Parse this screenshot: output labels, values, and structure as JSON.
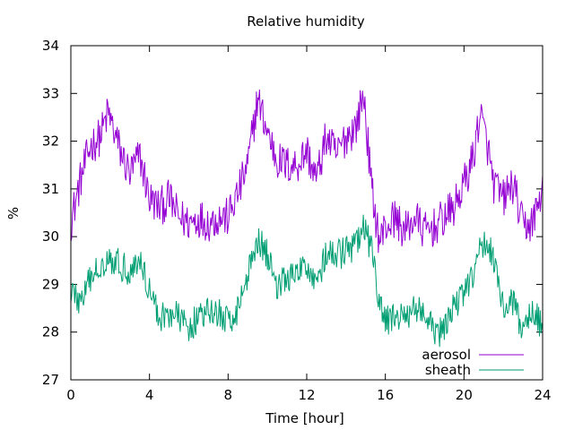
{
  "chart_data": {
    "type": "line",
    "title": "Relative humidity",
    "xlabel": "Time [hour]",
    "ylabel": "%",
    "xlim": [
      0,
      24
    ],
    "ylim": [
      27,
      34
    ],
    "x_ticks": [
      "0",
      "4",
      "8",
      "12",
      "16",
      "20",
      "24"
    ],
    "y_ticks": [
      "27",
      "28",
      "29",
      "30",
      "31",
      "32",
      "33",
      "34"
    ],
    "grid": false,
    "legend_position": "bottom-right",
    "series": [
      {
        "name": "aerosol",
        "color": "#9400d3",
        "x": [
          0,
          0.5,
          1,
          1.5,
          1.9,
          2.5,
          3,
          3.5,
          4,
          4.5,
          5,
          5.5,
          6,
          6.5,
          7,
          7.5,
          8,
          8.5,
          9,
          9.5,
          10,
          10.5,
          11,
          11.5,
          12,
          12.5,
          13,
          13.5,
          14,
          14.5,
          14.9,
          15.3,
          15.7,
          16,
          16.5,
          17,
          17.5,
          18,
          18.5,
          19,
          19.5,
          20,
          20.5,
          20.8,
          21.2,
          21.5,
          22,
          22.5,
          23,
          23.5,
          24
        ],
        "y": [
          30.3,
          31.2,
          31.9,
          32.1,
          32.6,
          31.8,
          31.3,
          31.7,
          30.8,
          30.6,
          30.8,
          30.4,
          30.3,
          30.4,
          30.3,
          30.4,
          30.4,
          30.9,
          31.5,
          32.9,
          32.2,
          31.6,
          31.5,
          31.5,
          31.8,
          31.2,
          32.1,
          31.7,
          32.1,
          32.3,
          33.0,
          31.0,
          29.9,
          30.2,
          30.4,
          30.1,
          30.4,
          30.1,
          30.2,
          30.4,
          30.6,
          31.1,
          31.7,
          32.6,
          31.9,
          31.1,
          30.8,
          31.1,
          30.2,
          30.3,
          31.0
        ]
      },
      {
        "name": "sheath",
        "color": "#009e73",
        "x": [
          0,
          0.5,
          1,
          1.5,
          1.9,
          2.5,
          3,
          3.5,
          4,
          4.5,
          5,
          5.5,
          6,
          6.5,
          7,
          7.5,
          8,
          8.5,
          9,
          9.5,
          10,
          10.5,
          11,
          11.5,
          12,
          12.5,
          13,
          13.5,
          14,
          14.5,
          14.9,
          15.3,
          15.7,
          16,
          16.5,
          17,
          17.5,
          18,
          18.5,
          19,
          19.5,
          20,
          20.5,
          20.8,
          21.2,
          21.5,
          22,
          22.5,
          23,
          23.5,
          24
        ],
        "y": [
          28.9,
          28.6,
          29.1,
          29.4,
          29.6,
          29.4,
          29.3,
          29.5,
          28.9,
          28.3,
          28.4,
          28.3,
          28.1,
          28.3,
          28.4,
          28.4,
          28.2,
          28.5,
          29.2,
          30.0,
          29.6,
          29.0,
          29.1,
          29.2,
          29.4,
          29.1,
          29.6,
          29.6,
          29.7,
          29.8,
          30.2,
          29.7,
          28.6,
          28.2,
          28.4,
          28.2,
          28.6,
          28.3,
          28.0,
          28.0,
          28.6,
          28.8,
          29.2,
          29.7,
          29.9,
          29.6,
          28.5,
          28.6,
          28.0,
          28.5,
          28.1
        ]
      }
    ]
  }
}
